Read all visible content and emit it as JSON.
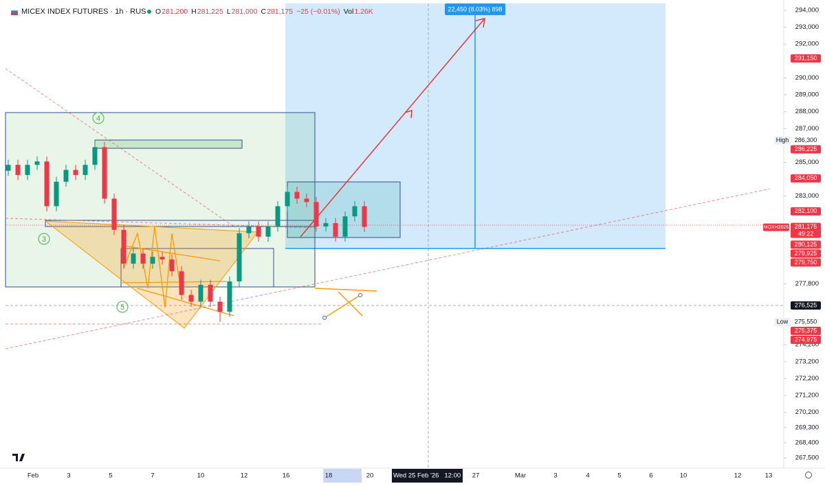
{
  "header": {
    "symbol": "MICEX INDEX FUTURES · 1h · RUS",
    "fields": [
      {
        "label": "O",
        "value": "281,200"
      },
      {
        "label": "H",
        "value": "281,225"
      },
      {
        "label": "L",
        "value": "281,000"
      },
      {
        "label": "C",
        "value": "281,175"
      },
      {
        "label": "",
        "value": "−25 (−0.01%)"
      },
      {
        "label": "Vol",
        "value": "1.26K"
      }
    ]
  },
  "chart_data": {
    "type": "candlestick",
    "open": [
      284500,
      284850,
      284250,
      284850,
      285050,
      282400,
      283850,
      284550,
      284250,
      284850,
      285900,
      282850,
      281000,
      279000,
      279600,
      279000,
      279400,
      279250,
      278550,
      277150,
      276750,
      277750,
      276750,
      276150,
      277950,
      280800,
      281200,
      280600,
      281200,
      282400,
      283250,
      282850,
      282650,
      281200,
      281400,
      280600,
      281800,
      282400
    ],
    "high": [
      285150,
      285150,
      285150,
      285350,
      285350,
      284150,
      284850,
      284850,
      285150,
      286300,
      286200,
      283150,
      281300,
      279900,
      279900,
      279700,
      279700,
      279550,
      278850,
      277450,
      278050,
      278050,
      277050,
      278250,
      281100,
      281500,
      281500,
      281500,
      282700,
      283550,
      283550,
      283150,
      282950,
      281700,
      281700,
      282100,
      282700,
      282700
    ],
    "low": [
      284200,
      283950,
      283950,
      284550,
      282100,
      282100,
      283550,
      283950,
      283950,
      284550,
      282550,
      280700,
      278700,
      278700,
      278700,
      278700,
      278950,
      278250,
      276850,
      276450,
      276450,
      276450,
      275550,
      275850,
      277650,
      280500,
      280300,
      280300,
      280900,
      282100,
      282550,
      282350,
      280900,
      280900,
      280300,
      280300,
      281500,
      280875
    ],
    "close": [
      284850,
      284250,
      284850,
      285050,
      282400,
      283850,
      284550,
      284250,
      284850,
      285900,
      282850,
      281000,
      279000,
      279600,
      279000,
      279400,
      279250,
      278550,
      277150,
      276750,
      277750,
      276750,
      276150,
      277950,
      280800,
      281200,
      280600,
      281200,
      282400,
      283250,
      282850,
      282650,
      281200,
      281400,
      280600,
      281800,
      282400,
      281175
    ],
    "up_color": "#089981",
    "down_color": "#f23645",
    "grid": false,
    "ylim": [
      267300,
      294000
    ],
    "yticks": [
      {
        "value": 294000,
        "label": "294,000"
      },
      {
        "value": 293000,
        "label": "293,000"
      },
      {
        "value": 292000,
        "label": "292,000"
      },
      {
        "value": 290000,
        "label": "290,000"
      },
      {
        "value": 289000,
        "label": "289,000"
      },
      {
        "value": 288000,
        "label": "288,000"
      },
      {
        "value": 287000,
        "label": "287,000"
      },
      {
        "value": 285000,
        "label": "285,000"
      },
      {
        "value": 283000,
        "label": "283,000"
      },
      {
        "value": 277800,
        "label": "277,800"
      },
      {
        "value": 274200,
        "label": "274,200"
      },
      {
        "value": 273200,
        "label": "273,200"
      },
      {
        "value": 272200,
        "label": "272,200"
      },
      {
        "value": 271200,
        "label": "271,200"
      },
      {
        "value": 270200,
        "label": "270,200"
      },
      {
        "value": 269300,
        "label": "269,300"
      },
      {
        "value": 268400,
        "label": "268,400"
      },
      {
        "value": 267500,
        "label": "267,500"
      }
    ],
    "x_labels": [
      "Feb",
      "3",
      "5",
      "7",
      "10",
      "12",
      "16",
      "18",
      "20",
      "27",
      "Mar",
      "3",
      "4",
      "5",
      "6",
      "10",
      "12",
      "13"
    ]
  },
  "crosshair_label": "Wed 25 Feb '26   12:00",
  "price_labels": [
    {
      "value": 291150,
      "label": "291,150",
      "style": "red"
    },
    {
      "value": 286300,
      "label": "286,300",
      "style": "plain",
      "tag": "High"
    },
    {
      "value": 286225,
      "label": "286,225",
      "style": "red"
    },
    {
      "value": 284050,
      "label": "284,050",
      "style": "red"
    },
    {
      "value": 282100,
      "label": "282,100",
      "style": "red"
    },
    {
      "value": 281175,
      "label": "281,175",
      "style": "current",
      "tag": "MOXH2026",
      "sub": "49:22"
    },
    {
      "value": 280125,
      "label": "280,125",
      "style": "red"
    },
    {
      "value": 279925,
      "label": "279,925",
      "style": "red"
    },
    {
      "value": 279750,
      "label": "279,750",
      "style": "red"
    },
    {
      "value": 276525,
      "label": "276,525",
      "style": "dark"
    },
    {
      "value": 275550,
      "label": "275,550",
      "style": "plain",
      "tag": "Low"
    },
    {
      "value": 275375,
      "label": "275,375",
      "style": "red"
    },
    {
      "value": 274975,
      "label": "274,975",
      "style": "red"
    }
  ],
  "annotations": {
    "projection": "22,450 (8.03%) 898",
    "waves": [
      "3",
      "4",
      "5"
    ]
  }
}
